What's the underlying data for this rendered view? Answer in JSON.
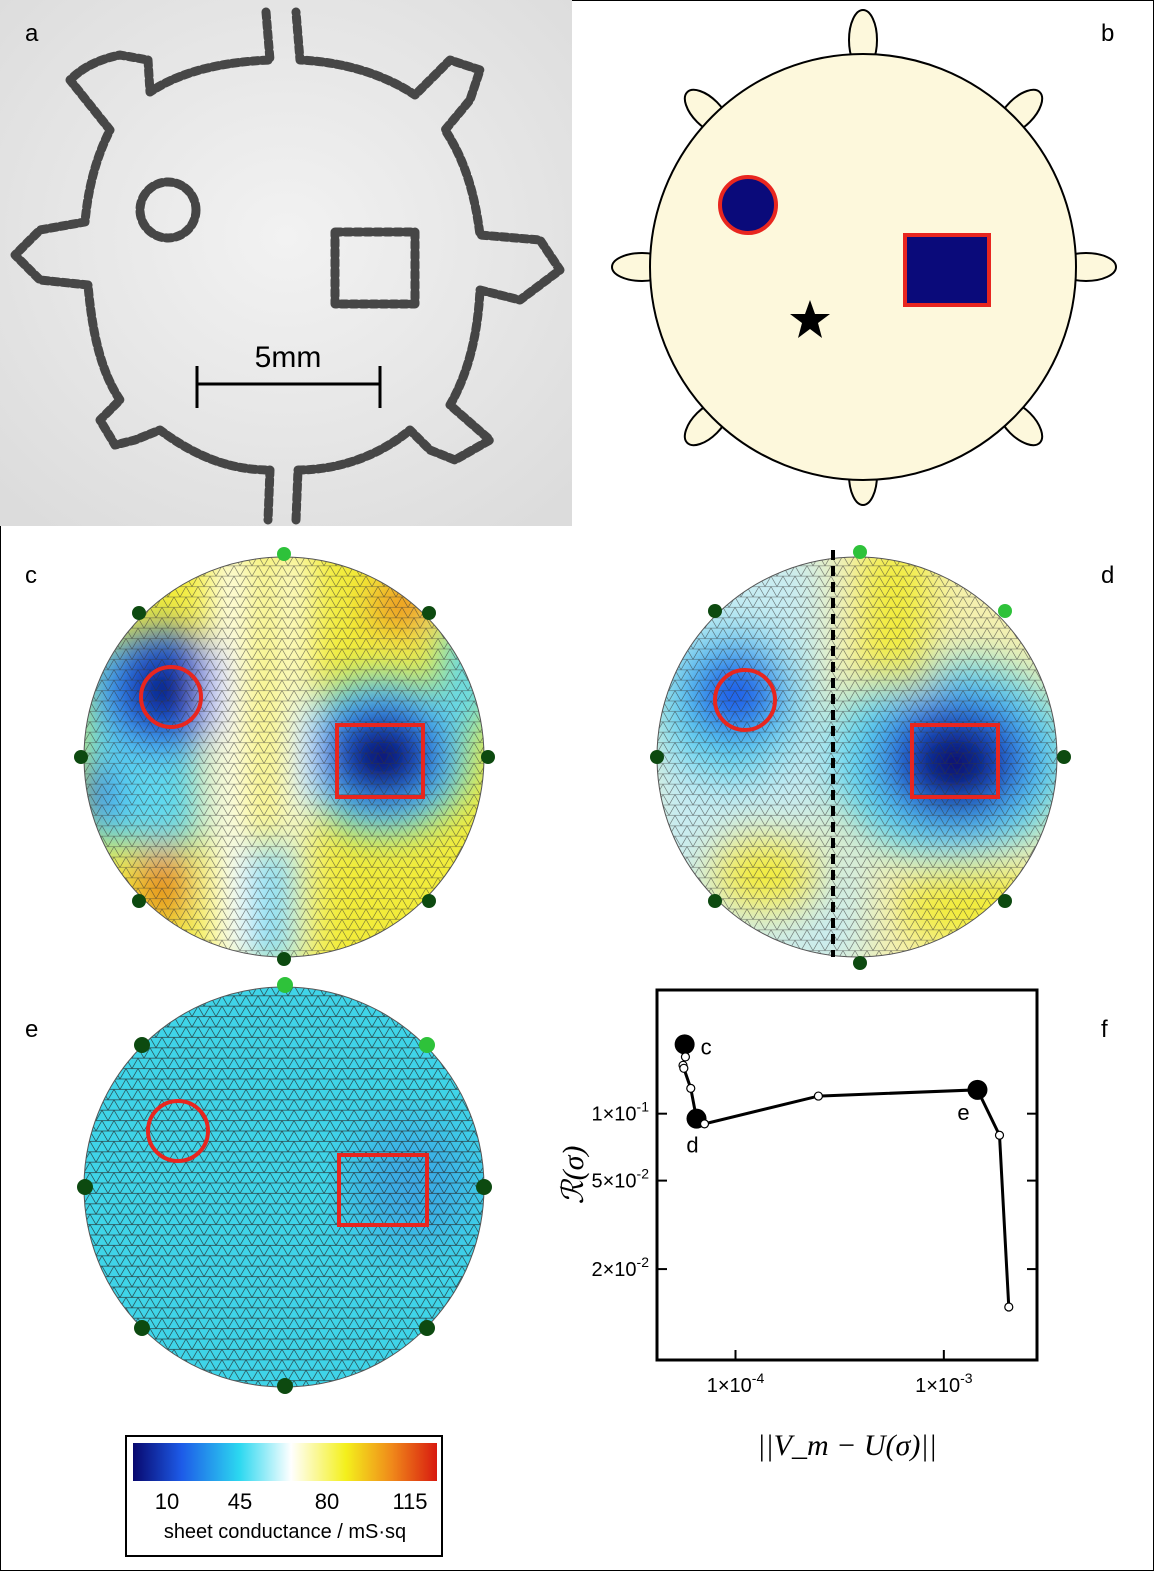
{
  "panel_labels": [
    "a",
    "b",
    "c",
    "d",
    "e",
    "f"
  ],
  "panel_a": {
    "scale_bar_label": "5mm"
  },
  "legend": {
    "ticks": [
      "10",
      "45",
      "80",
      "115"
    ],
    "title": "sheet conductance / mS·sq",
    "colors": [
      "#08086e",
      "#1d5be8",
      "#2cd8f0",
      "#ffffff",
      "#f4f01c",
      "#f08a1a",
      "#d81a10"
    ]
  },
  "colors": {
    "inclusion_fill": "#0a0a7a",
    "inclusion_outline": "#e8261f",
    "phantom_fill": "#fdf8dc",
    "electrode_dark": "#0d4a10",
    "electrode_light": "#2ec23a"
  },
  "chart_data": {
    "type": "line",
    "x_scale": "log",
    "y_scale": "log",
    "xlabel": "||V_m − U(σ)||",
    "ylabel": "ℛ(σ)",
    "x_ticks": [
      {
        "value": 0.0001,
        "label": "1×10",
        "exp": "-4"
      },
      {
        "value": 0.001,
        "label": "1×10",
        "exp": "-3"
      }
    ],
    "y_ticks": [
      {
        "value": 0.1,
        "label": "1×10",
        "exp": "-1"
      },
      {
        "value": 0.05,
        "label": "5×10",
        "exp": "-2"
      },
      {
        "value": 0.02,
        "label": "2×10",
        "exp": "-2"
      }
    ],
    "xlim": [
      4.2e-05,
      0.0028
    ],
    "ylim": [
      0.0078,
      0.36
    ],
    "series": [
      {
        "points": [
          {
            "x": 5.7e-05,
            "y": 0.205,
            "label": "c"
          },
          {
            "x": 5.75e-05,
            "y": 0.18
          },
          {
            "x": 5.6e-05,
            "y": 0.165
          },
          {
            "x": 5.65e-05,
            "y": 0.16
          },
          {
            "x": 6.1e-05,
            "y": 0.13
          },
          {
            "x": 6.5e-05,
            "y": 0.095,
            "label": "d"
          },
          {
            "x": 7.1e-05,
            "y": 0.09
          },
          {
            "x": 0.00025,
            "y": 0.12
          },
          {
            "x": 0.00145,
            "y": 0.128,
            "label": "e"
          },
          {
            "x": 0.00185,
            "y": 0.08
          },
          {
            "x": 0.00205,
            "y": 0.0135
          }
        ]
      }
    ]
  }
}
